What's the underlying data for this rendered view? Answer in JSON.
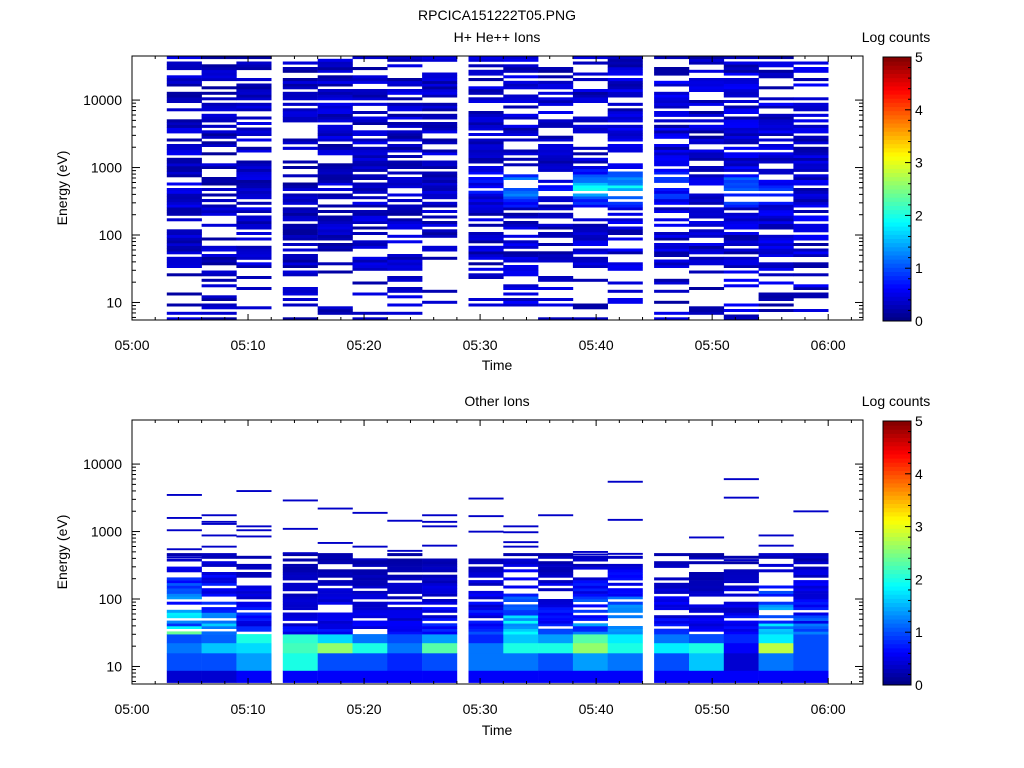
{
  "figure_title": "RPCICA151222T05.PNG",
  "colormap": [
    "#00007f",
    "#0000ff",
    "#007fff",
    "#00ffff",
    "#7fff7f",
    "#ffff00",
    "#ff7f00",
    "#ff0000",
    "#7f0000"
  ],
  "chart_data": [
    {
      "type": "heatmap",
      "title": "H+ He++ Ions",
      "xlabel": "Time",
      "ylabel": "Energy (eV)",
      "xlim": [
        "05:00",
        "06:03"
      ],
      "ylim": [
        5.5,
        45000
      ],
      "yscale": "log",
      "xticks": [
        "05:00",
        "05:10",
        "05:20",
        "05:30",
        "05:40",
        "05:50",
        "06:00"
      ],
      "yticks": [
        "10",
        "100",
        "1000",
        "10000"
      ],
      "colorbar": {
        "label": "Log counts",
        "range": [
          0,
          5
        ],
        "ticks": [
          "0",
          "1",
          "2",
          "3",
          "4",
          "5"
        ]
      },
      "time_bins_start": [
        "05:03",
        "05:06",
        "05:09",
        "05:13",
        "05:16",
        "05:19",
        "05:22",
        "05:25",
        "05:29",
        "05:32",
        "05:35",
        "05:38",
        "05:41",
        "05:45",
        "05:48",
        "05:51",
        "05:54",
        "05:57"
      ],
      "energy_range": [
        5.5,
        45000
      ],
      "energy_bins": 96,
      "column_profiles": [
        {
          "fill": 0.72,
          "mean": 0.35,
          "low": 0.3,
          "bump": 0
        },
        {
          "fill": 0.62,
          "mean": 0.3,
          "low": 0.25,
          "bump": 0
        },
        {
          "fill": 0.72,
          "mean": 0.35,
          "low": 0.3,
          "bump": 0
        },
        {
          "fill": 0.65,
          "mean": 0.3,
          "low": 0.35,
          "bump": 0
        },
        {
          "fill": 0.7,
          "mean": 0.35,
          "low": 0.3,
          "bump": 0
        },
        {
          "fill": 0.66,
          "mean": 0.35,
          "low": 0.25,
          "bump": 0
        },
        {
          "fill": 0.7,
          "mean": 0.35,
          "low": 0.3,
          "bump": 0
        },
        {
          "fill": 0.66,
          "mean": 0.35,
          "low": 0.3,
          "bump": 0
        },
        {
          "fill": 0.66,
          "mean": 0.35,
          "low": 0.25,
          "bump": 0.3
        },
        {
          "fill": 0.62,
          "mean": 0.4,
          "low": 0.3,
          "bump": 1.2
        },
        {
          "fill": 0.62,
          "mean": 0.35,
          "low": 0.25,
          "bump": 0.3
        },
        {
          "fill": 0.66,
          "mean": 0.35,
          "low": 0.3,
          "bump": 1.5
        },
        {
          "fill": 0.7,
          "mean": 0.4,
          "low": 0.3,
          "bump": 1.6
        },
        {
          "fill": 0.7,
          "mean": 0.4,
          "low": 0.3,
          "bump": 0.6
        },
        {
          "fill": 0.62,
          "mean": 0.35,
          "low": 0.3,
          "bump": 0.3
        },
        {
          "fill": 0.66,
          "mean": 0.4,
          "low": 0.3,
          "bump": 1.0
        },
        {
          "fill": 0.7,
          "mean": 0.4,
          "low": 0.3,
          "bump": 0.4
        },
        {
          "fill": 0.7,
          "mean": 0.4,
          "low": 0.3,
          "bump": 0
        }
      ],
      "bump_energy": 500,
      "seed": 17
    },
    {
      "type": "heatmap",
      "title": "Other Ions",
      "xlabel": "Time",
      "ylabel": "Energy (eV)",
      "xlim": [
        "05:00",
        "06:03"
      ],
      "ylim": [
        5.5,
        45000
      ],
      "yscale": "log",
      "xticks": [
        "05:00",
        "05:10",
        "05:20",
        "05:30",
        "05:40",
        "05:50",
        "06:00"
      ],
      "yticks": [
        "10",
        "100",
        "1000",
        "10000"
      ],
      "colorbar": {
        "label": "Log counts",
        "range": [
          0,
          5
        ],
        "ticks": [
          "0",
          "1",
          "2",
          "3",
          "4",
          "5"
        ]
      },
      "time_bins_start": [
        "05:03",
        "05:06",
        "05:09",
        "05:13",
        "05:16",
        "05:19",
        "05:22",
        "05:25",
        "05:29",
        "05:32",
        "05:35",
        "05:38",
        "05:41",
        "05:45",
        "05:48",
        "05:51",
        "05:54",
        "05:57"
      ],
      "energy_range": [
        5.5,
        45000
      ],
      "energy_bins": 96,
      "low_energy_levels": [
        [
          0.4,
          1.0,
          1.2,
          1.0
        ],
        [
          0.4,
          1.0,
          1.6,
          1.1
        ],
        [
          0.6,
          1.4,
          1.7,
          2.0
        ],
        [
          0.6,
          2.0,
          2.2,
          2.1
        ],
        [
          0.6,
          1.0,
          2.6,
          1.7
        ],
        [
          0.6,
          1.0,
          2.0,
          1.2
        ],
        [
          0.6,
          0.8,
          1.2,
          1.0
        ],
        [
          0.6,
          1.0,
          2.3,
          1.4
        ],
        [
          0.6,
          1.2,
          1.2,
          0.8
        ],
        [
          0.6,
          1.2,
          2.0,
          1.6
        ],
        [
          0.6,
          1.0,
          2.0,
          1.4
        ],
        [
          0.6,
          1.4,
          2.6,
          2.3
        ],
        [
          0.6,
          1.2,
          2.0,
          1.8
        ],
        [
          0.6,
          1.0,
          1.8,
          1.2
        ],
        [
          0.6,
          1.6,
          2.0,
          1.0
        ],
        [
          0.6,
          0.4,
          0.6,
          0.8
        ],
        [
          0.6,
          1.2,
          2.8,
          1.8
        ],
        [
          0.6,
          1.0,
          1.0,
          1.0
        ]
      ],
      "mid_band_levels": [
        1.5,
        1.1,
        0.6,
        0.4,
        0.5,
        0.4,
        0.4,
        0.5,
        0.6,
        1.4,
        0.6,
        1.0,
        1.2,
        0.5,
        0.4,
        0.5,
        1.4,
        0.8
      ],
      "sparse_high_energy": [
        [
          3500,
          1600,
          1050,
          550,
          420
        ],
        [
          1300,
          880,
          1750,
          1400,
          600
        ],
        [
          4000,
          1200,
          1050,
          850
        ],
        [
          2900,
          1100,
          480
        ],
        [
          2200,
          680
        ],
        [
          1900,
          600,
          390
        ],
        [
          1450,
          520
        ],
        [
          1400,
          1200,
          1750,
          620
        ],
        [
          3100,
          1700,
          1000
        ],
        [
          1200,
          980,
          600,
          700
        ],
        [
          1750,
          420
        ],
        [
          500,
          460
        ],
        [
          5500,
          1500,
          470
        ],
        [
          300
        ],
        [
          820,
          400
        ],
        [
          6000,
          3200,
          380
        ],
        [
          880,
          620
        ],
        [
          2000,
          420
        ]
      ],
      "seed": 41
    }
  ]
}
